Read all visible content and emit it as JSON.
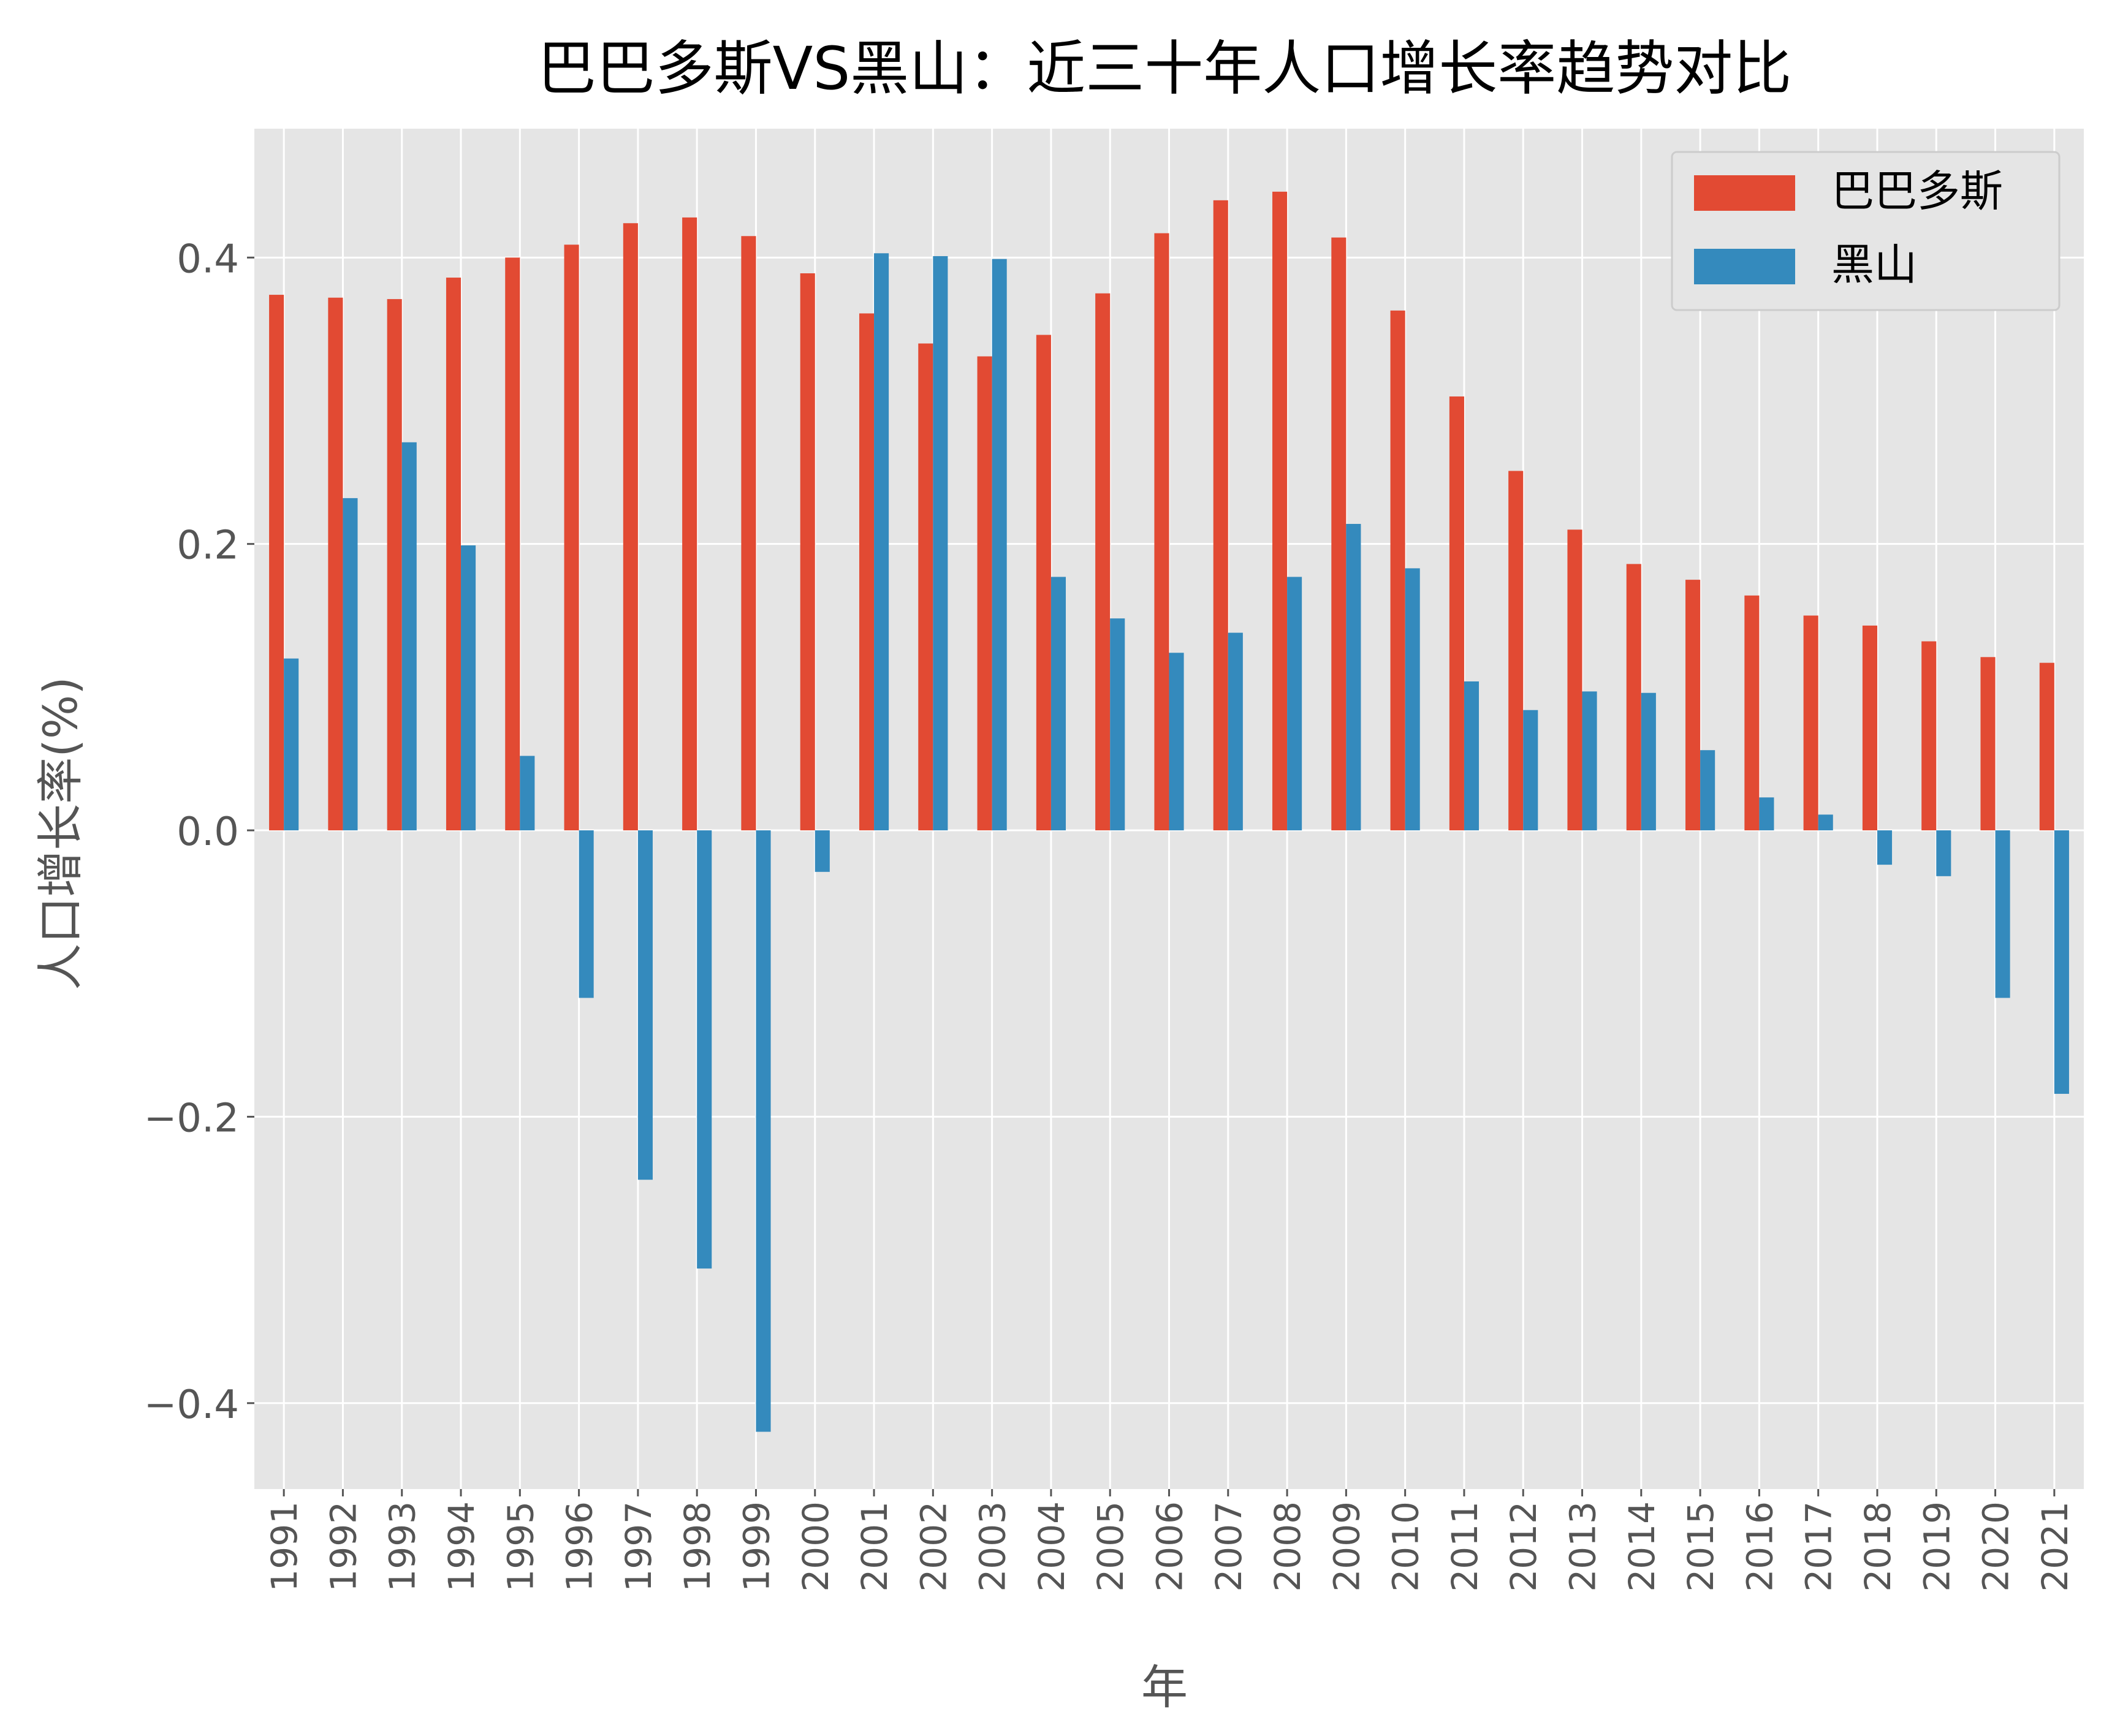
{
  "chart_data": {
    "type": "bar",
    "title": "巴巴多斯VS黑山：近三十年人口增长率趋势对比",
    "xlabel": "年",
    "ylabel": "人口增长率(%)",
    "ylim": [
      -0.46,
      0.49
    ],
    "yticks": [
      "0.4",
      "0.2",
      "0.0",
      "−0.2",
      "−0.4"
    ],
    "ytick_values": [
      0.4,
      0.2,
      0.0,
      -0.2,
      -0.4
    ],
    "grid": true,
    "legend_position": "top-right",
    "categories": [
      "1991",
      "1992",
      "1993",
      "1994",
      "1995",
      "1996",
      "1997",
      "1998",
      "1999",
      "2000",
      "2001",
      "2002",
      "2003",
      "2004",
      "2005",
      "2006",
      "2007",
      "2008",
      "2009",
      "2010",
      "2011",
      "2012",
      "2013",
      "2014",
      "2015",
      "2016",
      "2017",
      "2018",
      "2019",
      "2020",
      "2021"
    ],
    "series": [
      {
        "name": "巴巴多斯",
        "color": "#E24A33",
        "values": [
          0.374,
          0.372,
          0.371,
          0.386,
          0.4,
          0.409,
          0.424,
          0.428,
          0.415,
          0.389,
          0.361,
          0.34,
          0.331,
          0.346,
          0.375,
          0.417,
          0.44,
          0.446,
          0.414,
          0.363,
          0.303,
          0.251,
          0.21,
          0.186,
          0.175,
          0.164,
          0.15,
          0.143,
          0.132,
          0.121,
          0.117
        ]
      },
      {
        "name": "黑山",
        "color": "#348ABD",
        "values": [
          0.12,
          0.232,
          0.271,
          0.199,
          0.052,
          -0.117,
          -0.244,
          -0.306,
          -0.42,
          -0.029,
          0.403,
          0.401,
          0.399,
          0.177,
          0.148,
          0.124,
          0.138,
          0.177,
          0.214,
          0.183,
          0.104,
          0.084,
          0.097,
          0.096,
          0.056,
          0.023,
          0.011,
          -0.024,
          -0.032,
          -0.117,
          -0.184
        ]
      }
    ]
  }
}
